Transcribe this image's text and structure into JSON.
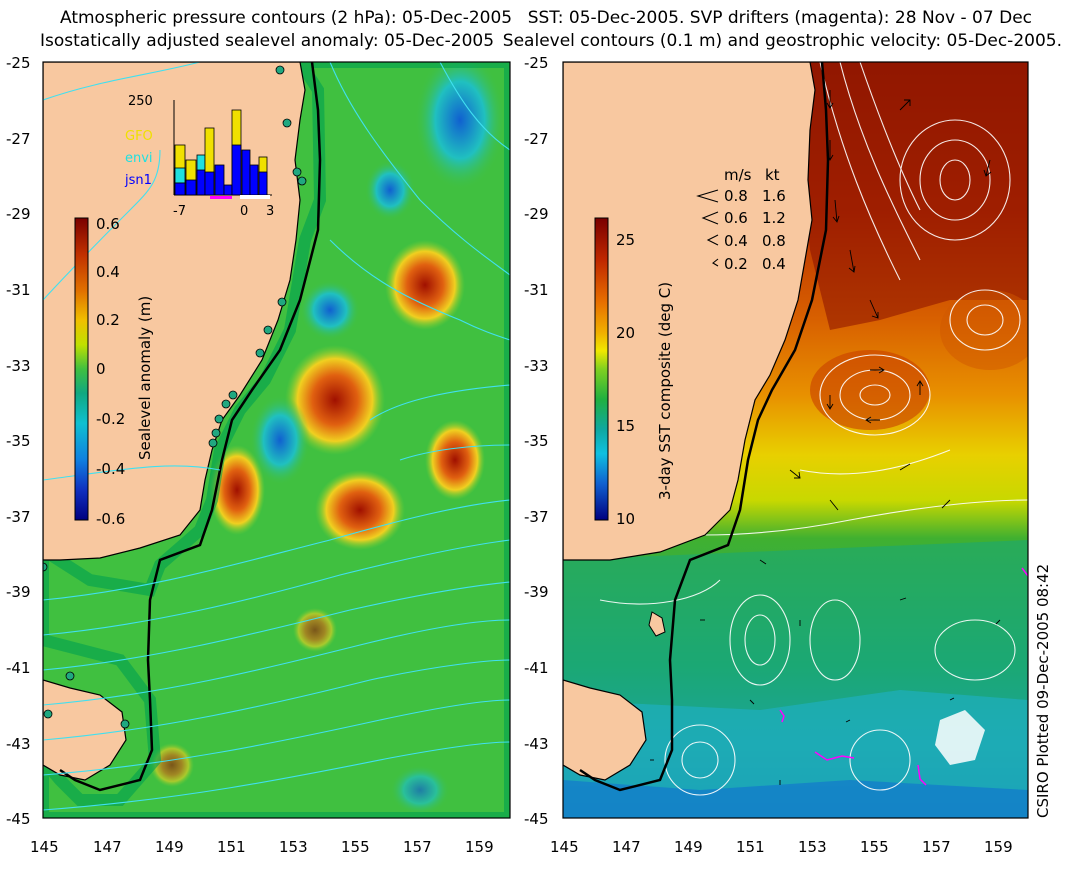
{
  "left_panel": {
    "title_line1": "Atmospheric pressure contours (2 hPa): 05-Dec-2005",
    "title_line2": "Isostatically adjusted sealevel anomaly: 05-Dec-2005",
    "colorbar_label": "Sealevel anomaly (m)",
    "colorbar_ticks": [
      "0.6",
      "0.4",
      "0.2",
      "0",
      "-0.2",
      "-0.4",
      "-0.6"
    ],
    "colorbar_colors": [
      "#7a0000",
      "#c03000",
      "#e07000",
      "#f0b000",
      "#e8e800",
      "#80d000",
      "#20b020",
      "#10a080",
      "#10c0d0",
      "#1080e0",
      "#1030c0",
      "#000080"
    ],
    "inset": {
      "y_label": "250",
      "legend": [
        {
          "label": "GFO",
          "color": "#f0e000"
        },
        {
          "label": "envi",
          "color": "#20e0e0"
        },
        {
          "label": "jsn1",
          "color": "#0000ff"
        }
      ],
      "x_ticks": [
        "-7",
        "0",
        "3"
      ]
    }
  },
  "right_panel": {
    "title_line1": "SST: 05-Dec-2005. SVP drifters (magenta): 28 Nov - 07 Dec",
    "title_line2": "Sealevel contours (0.1 m) and geostrophic velocity: 05-Dec-2005.",
    "colorbar_label": "3-day SST composite (deg C)",
    "colorbar_ticks": [
      "25",
      "20",
      "15",
      "10"
    ],
    "colorbar_colors": [
      "#7a0000",
      "#b02000",
      "#e06000",
      "#f0a000",
      "#f0e000",
      "#a0d000",
      "#20b020",
      "#10a080",
      "#10c0d0",
      "#1080e0",
      "#1030c0",
      "#000080"
    ],
    "speed_legend": {
      "header_ms": "m/s",
      "header_kt": "kt",
      "rows": [
        {
          "ms": "0.8",
          "kt": "1.6"
        },
        {
          "ms": "0.6",
          "kt": "1.2"
        },
        {
          "ms": "0.4",
          "kt": "0.8"
        },
        {
          "ms": "0.2",
          "kt": "0.4"
        }
      ]
    }
  },
  "axes": {
    "lat_ticks": [
      "-25",
      "-27",
      "-29",
      "-31",
      "-33",
      "-35",
      "-37",
      "-39",
      "-41",
      "-43",
      "-45"
    ],
    "lon_ticks": [
      "145",
      "147",
      "149",
      "151",
      "153",
      "155",
      "157",
      "159"
    ]
  },
  "credit": "CSIRO Plotted 09-Dec-2005 08:42",
  "colors": {
    "land": "#f8c8a0",
    "coast_band": "#00b060",
    "ocean_left": "#40c040",
    "ocean_right_south": "#18a878",
    "contour_cyan": "#40e0f0",
    "drifter_magenta": "#ff00ff"
  }
}
